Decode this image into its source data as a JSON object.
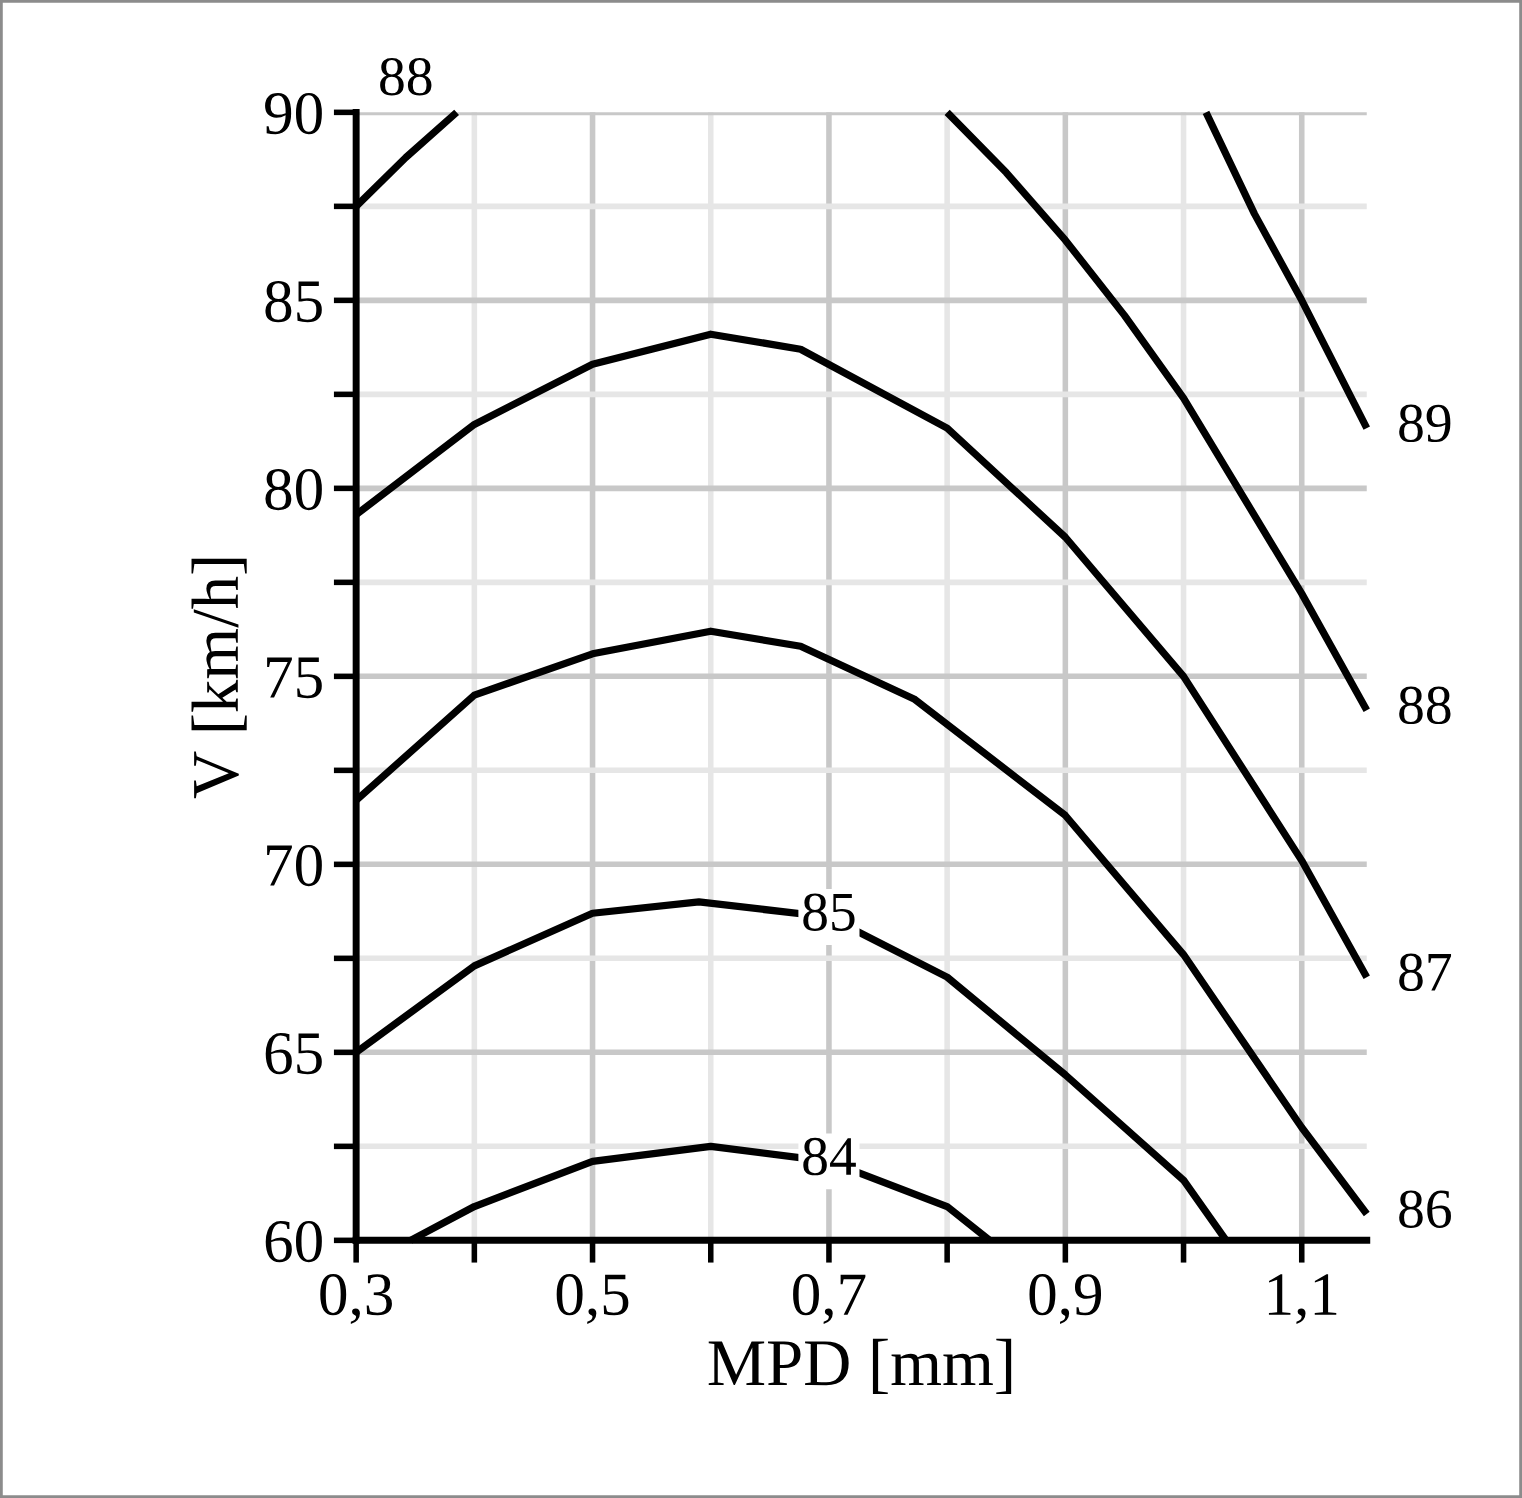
{
  "chart_data": {
    "type": "line",
    "xlabel": "MPD [mm]",
    "ylabel": "V [km/h]",
    "xlim": [
      0.3,
      1.155
    ],
    "ylim": [
      60,
      90
    ],
    "xticks": [
      {
        "value": 0.3,
        "label": "0,3"
      },
      {
        "value": 0.4,
        "label": null
      },
      {
        "value": 0.5,
        "label": "0,5"
      },
      {
        "value": 0.6,
        "label": null
      },
      {
        "value": 0.7,
        "label": "0,7"
      },
      {
        "value": 0.8,
        "label": null
      },
      {
        "value": 0.9,
        "label": "0,9"
      },
      {
        "value": 1.0,
        "label": null
      },
      {
        "value": 1.1,
        "label": "1,1"
      }
    ],
    "yticks": [
      60,
      {
        "value": 62.5,
        "label": null
      },
      65,
      {
        "value": 67.5,
        "label": null
      },
      70,
      {
        "value": 72.5,
        "label": null
      },
      75,
      {
        "value": 77.5,
        "label": null
      },
      80,
      {
        "value": 82.5,
        "label": null
      },
      85,
      {
        "value": 87.5,
        "label": null
      },
      90
    ],
    "grid": true,
    "marker": "none",
    "line_style": "solid",
    "series": [
      {
        "name": "84",
        "color": "#000000",
        "x": [
          0.346,
          0.4,
          0.5,
          0.6,
          0.7,
          0.8,
          0.836
        ],
        "values": [
          60,
          60.9,
          62.1,
          62.5,
          62.1,
          60.9,
          60
        ]
      },
      {
        "name": "85",
        "color": "#000000",
        "x": [
          0.3,
          0.4,
          0.5,
          0.59,
          0.7,
          0.8,
          0.9,
          1.0,
          1.036
        ],
        "values": [
          65,
          67.3,
          68.7,
          69,
          68.6,
          67,
          64.4,
          61.6,
          60
        ]
      },
      {
        "name": "86",
        "color": "#000000",
        "x": [
          0.3,
          0.4,
          0.5,
          0.6,
          0.676,
          0.772,
          0.9,
          1.0,
          1.1,
          1.155
        ],
        "values": [
          71.7,
          74.5,
          75.6,
          76.2,
          75.8,
          74.4,
          71.3,
          67.6,
          63,
          60.7
        ]
      },
      {
        "name": "87",
        "color": "#000000",
        "x": [
          0.3,
          0.4,
          0.5,
          0.6,
          0.676,
          0.8,
          0.9,
          1.0,
          1.1,
          1.155
        ],
        "values": [
          79.3,
          81.7,
          83.3,
          84.1,
          83.7,
          81.6,
          78.7,
          75,
          70.1,
          67
        ]
      },
      {
        "name": "88",
        "color": "#000000",
        "x": [
          0.3,
          0.342,
          0.385
        ],
        "values": [
          87.5,
          88.8,
          90
        ]
      },
      {
        "name": "88",
        "color": "#000000",
        "x": [
          0.8,
          0.85,
          0.9,
          0.95,
          1.0,
          1.05,
          1.1,
          1.155
        ],
        "values": [
          90,
          88.4,
          86.6,
          84.6,
          82.4,
          79.8,
          77.2,
          74.1
        ]
      },
      {
        "name": "89",
        "color": "#000000",
        "x": [
          1.019,
          1.06,
          1.1,
          1.155
        ],
        "values": [
          90,
          87.3,
          85,
          81.6
        ]
      }
    ]
  }
}
